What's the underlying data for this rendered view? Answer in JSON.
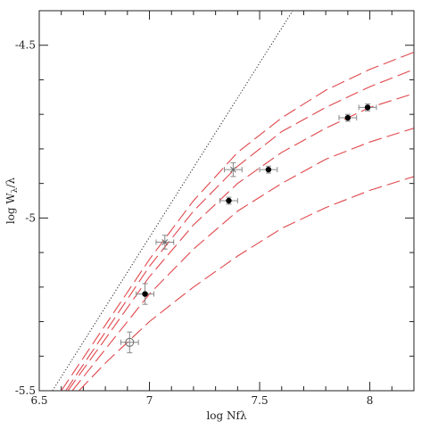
{
  "chart_data": {
    "type": "scatter",
    "xlabel": "log Nfλ",
    "ylabel_main": "log W",
    "ylabel_sub": "λ",
    "ylabel_tail": "/λ",
    "xlim": [
      6.5,
      8.2
    ],
    "ylim": [
      -5.5,
      -4.4
    ],
    "xticks": [
      6.5,
      7,
      7.5,
      8
    ],
    "xtick_labels": [
      "6.5",
      "7",
      "7.5",
      "8"
    ],
    "yticks": [
      -5.5,
      -5,
      -4.5
    ],
    "ytick_labels": [
      "-5.5",
      "-5",
      "-4.5"
    ],
    "grid": false,
    "colors": {
      "curves": "#e0474c",
      "points": "#000000",
      "errorbars": "#888888",
      "line": "#333333"
    },
    "linear_relation": {
      "style": "dotted",
      "points": [
        [
          6.56,
          -5.5
        ],
        [
          7.65,
          -4.4
        ]
      ]
    },
    "curves": [
      {
        "style": "dashed",
        "points": [
          [
            6.6,
            -5.5
          ],
          [
            6.8,
            -5.31
          ],
          [
            7.0,
            -5.12
          ],
          [
            7.2,
            -4.95
          ],
          [
            7.4,
            -4.81
          ],
          [
            7.6,
            -4.71
          ],
          [
            7.8,
            -4.63
          ],
          [
            8.0,
            -4.57
          ],
          [
            8.2,
            -4.52
          ]
        ]
      },
      {
        "style": "dashed",
        "points": [
          [
            6.62,
            -5.5
          ],
          [
            6.8,
            -5.33
          ],
          [
            7.0,
            -5.14
          ],
          [
            7.2,
            -4.98
          ],
          [
            7.4,
            -4.85
          ],
          [
            7.6,
            -4.75
          ],
          [
            7.8,
            -4.68
          ],
          [
            8.0,
            -4.62
          ],
          [
            8.2,
            -4.57
          ]
        ]
      },
      {
        "style": "dashed",
        "points": [
          [
            6.63,
            -5.5
          ],
          [
            6.8,
            -5.35
          ],
          [
            7.0,
            -5.17
          ],
          [
            7.2,
            -5.02
          ],
          [
            7.4,
            -4.9
          ],
          [
            7.6,
            -4.81
          ],
          [
            7.8,
            -4.74
          ],
          [
            8.0,
            -4.68
          ],
          [
            8.2,
            -4.64
          ]
        ]
      },
      {
        "style": "dashed",
        "points": [
          [
            6.65,
            -5.5
          ],
          [
            6.8,
            -5.38
          ],
          [
            7.0,
            -5.22
          ],
          [
            7.2,
            -5.09
          ],
          [
            7.4,
            -4.98
          ],
          [
            7.6,
            -4.9
          ],
          [
            7.8,
            -4.83
          ],
          [
            8.0,
            -4.78
          ],
          [
            8.2,
            -4.74
          ]
        ]
      },
      {
        "style": "dashed",
        "points": [
          [
            6.68,
            -5.5
          ],
          [
            6.8,
            -5.42
          ],
          [
            7.0,
            -5.3
          ],
          [
            7.2,
            -5.2
          ],
          [
            7.4,
            -5.11
          ],
          [
            7.6,
            -5.03
          ],
          [
            7.8,
            -4.97
          ],
          [
            8.0,
            -4.92
          ],
          [
            8.2,
            -4.88
          ]
        ]
      }
    ],
    "points": [
      {
        "x": 6.91,
        "y": -5.36,
        "xerr": 0.04,
        "yerr": 0.03,
        "marker": "open-circle"
      },
      {
        "x": 6.98,
        "y": -5.22,
        "xerr": 0.04,
        "yerr": 0.03,
        "marker": "filled-circle"
      },
      {
        "x": 7.07,
        "y": -5.07,
        "xerr": 0.04,
        "yerr": 0.02,
        "marker": "cross"
      },
      {
        "x": 7.36,
        "y": -4.95,
        "xerr": 0.04,
        "yerr": 0.01,
        "marker": "filled-circle"
      },
      {
        "x": 7.38,
        "y": -4.86,
        "xerr": 0.04,
        "yerr": 0.02,
        "marker": "cross"
      },
      {
        "x": 7.54,
        "y": -4.86,
        "xerr": 0.04,
        "yerr": 0.01,
        "marker": "filled-circle"
      },
      {
        "x": 7.9,
        "y": -4.71,
        "xerr": 0.04,
        "yerr": 0.01,
        "marker": "filled-circle"
      },
      {
        "x": 7.99,
        "y": -4.68,
        "xerr": 0.04,
        "yerr": 0.01,
        "marker": "filled-circle"
      }
    ]
  }
}
